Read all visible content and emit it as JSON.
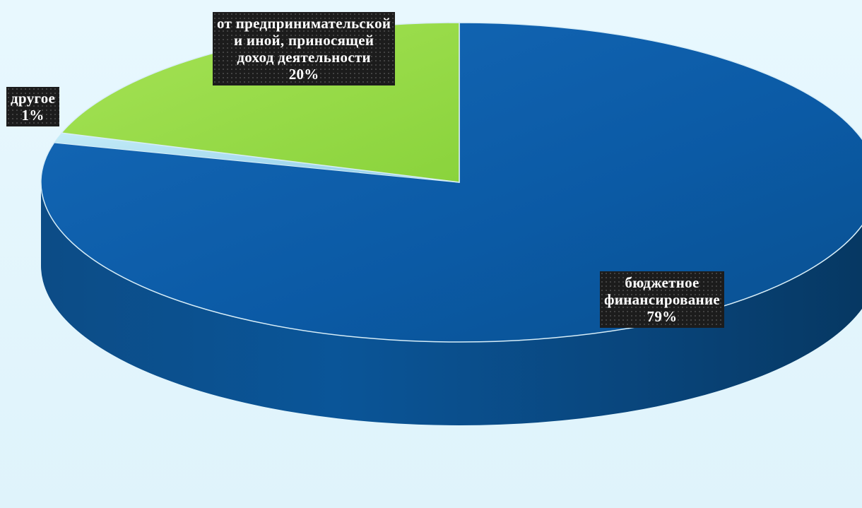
{
  "chart_data": {
    "type": "pie",
    "style": "3d",
    "title": "",
    "slices": [
      {
        "label": "бюджетное финансирование",
        "label_lines": [
          "бюджетное",
          "финансирование"
        ],
        "value": 79,
        "value_label": "79%",
        "color": "#0c5aa6"
      },
      {
        "label": "другое",
        "label_lines": [
          "другое"
        ],
        "value": 1,
        "value_label": "1%",
        "color": "#9fd6ef"
      },
      {
        "label": "от предпринимательской и иной, приносящей доход деятельности",
        "label_lines": [
          "от предпринимательской",
          "и иной, приносящей",
          "доход деятельности"
        ],
        "value": 20,
        "value_label": "20%",
        "color": "#96dc46"
      }
    ],
    "legend": "none",
    "data_labels": "on-chart, dark patterned boxes"
  },
  "colors": {
    "background": "#e3f6fd",
    "label_box": "#1c1c1c",
    "label_text": "#ffffff"
  }
}
